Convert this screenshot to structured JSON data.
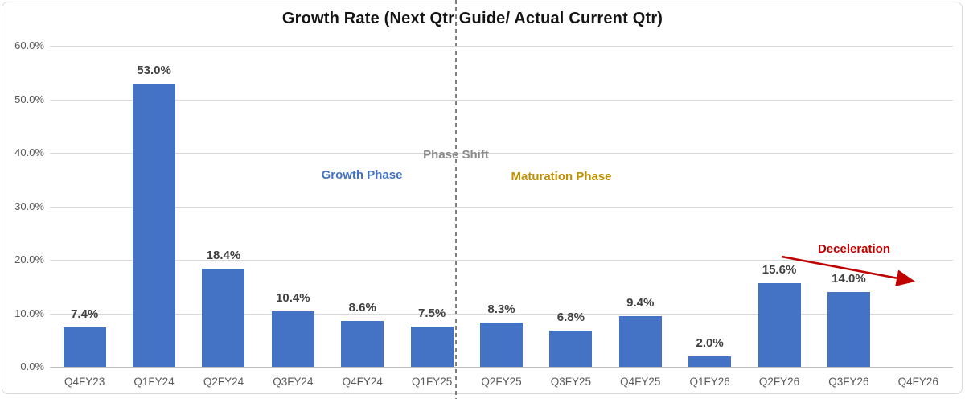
{
  "chart_data": {
    "type": "bar",
    "title": "Growth Rate (Next Qtr Guide/ Actual Current Qtr)",
    "categories": [
      "Q4FY23",
      "Q1FY24",
      "Q2FY24",
      "Q3FY24",
      "Q4FY24",
      "Q1FY25",
      "Q2FY25",
      "Q3FY25",
      "Q4FY25",
      "Q1FY26",
      "Q2FY26",
      "Q3FY26",
      "Q4FY26"
    ],
    "values": [
      7.4,
      53.0,
      18.4,
      10.4,
      8.6,
      7.5,
      8.3,
      6.8,
      9.4,
      2.0,
      15.6,
      14.0,
      null
    ],
    "data_labels": [
      "7.4%",
      "53.0%",
      "18.4%",
      "10.4%",
      "8.6%",
      "7.5%",
      "8.3%",
      "6.8%",
      "9.4%",
      "2.0%",
      "15.6%",
      "14.0%",
      ""
    ],
    "xlabel": "",
    "ylabel": "",
    "ylim": [
      0,
      60
    ],
    "ytick_labels": [
      "0.0%",
      "10.0%",
      "20.0%",
      "30.0%",
      "40.0%",
      "50.0%",
      "60.0%"
    ],
    "grid": true,
    "legend": "none",
    "bar_color": "#4472C4",
    "gridline_color": "#D9D9D9",
    "axis_line_color": "#BFBFBF",
    "tick_label_color": "#595959",
    "data_label_color": "#404040",
    "divider_after_category": "Q1FY25",
    "annotations": {
      "phase_shift": {
        "text": "Phase Shift",
        "color": "#8A8A8A"
      },
      "growth_phase": {
        "text": "Growth Phase",
        "color": "#4472C4"
      },
      "maturation_phase": {
        "text": "Maturation Phase",
        "color": "#BF9000"
      },
      "deceleration": {
        "text": "Deceleration",
        "color": "#C00000",
        "arrow_color": "#C00000"
      }
    }
  }
}
